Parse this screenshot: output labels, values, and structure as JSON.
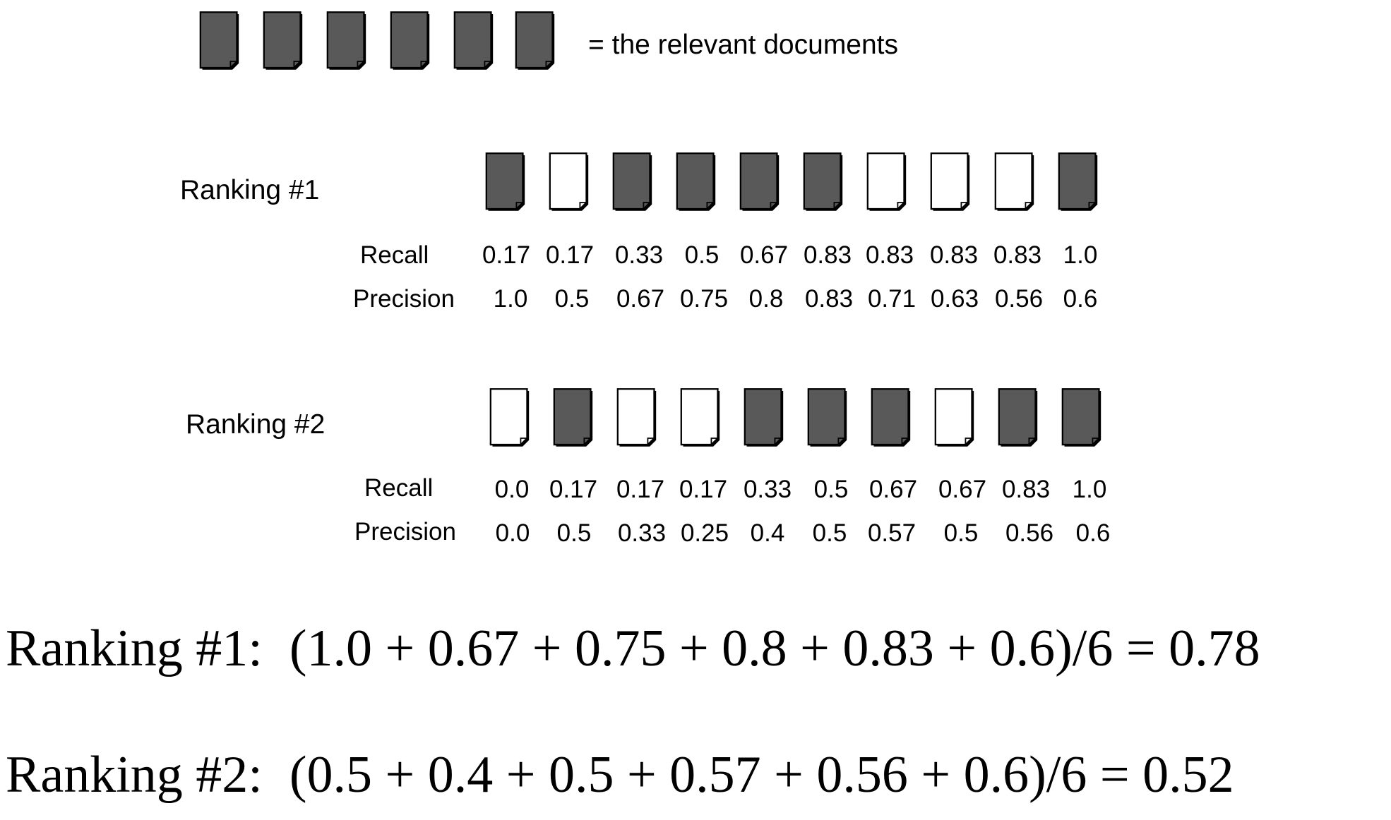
{
  "legend": {
    "relevant_count": 6,
    "text": "= the relevant documents",
    "fill_color": "#595959",
    "outline_color": "#000000"
  },
  "row_labels": {
    "recall": "Recall",
    "precision": "Precision"
  },
  "rankings": [
    {
      "label": "Ranking #1",
      "relevance": [
        true,
        false,
        true,
        true,
        true,
        true,
        false,
        false,
        false,
        true
      ],
      "recall": [
        "0.17",
        "0.17",
        "0.33",
        "0.5",
        "0.67",
        "0.83",
        "0.83",
        "0.83",
        "0.83",
        "1.0"
      ],
      "precision": [
        "1.0",
        "0.5",
        "0.67",
        "0.75",
        "0.8",
        "0.83",
        "0.71",
        "0.63",
        "0.56",
        "0.6"
      ]
    },
    {
      "label": "Ranking #2",
      "relevance": [
        false,
        true,
        false,
        false,
        true,
        true,
        true,
        false,
        true,
        true
      ],
      "recall": [
        "0.0",
        "0.17",
        "0.17",
        "0.17",
        "0.33",
        "0.5",
        "0.67",
        "0.67",
        "0.83",
        "1.0"
      ],
      "precision": [
        "0.0",
        "0.5",
        "0.33",
        "0.25",
        "0.4",
        "0.5",
        "0.57",
        "0.5",
        "0.56",
        "0.6"
      ]
    }
  ],
  "formulas": [
    {
      "prefix": "Ranking #1:",
      "expression": "(1.0 + 0.67 + 0.75 + 0.8 + 0.83 + 0.6)/6 = 0.78"
    },
    {
      "prefix": "Ranking #2:",
      "expression": "(0.5 + 0.4 + 0.5 + 0.57 + 0.56 + 0.6)/6 = 0.52"
    }
  ]
}
